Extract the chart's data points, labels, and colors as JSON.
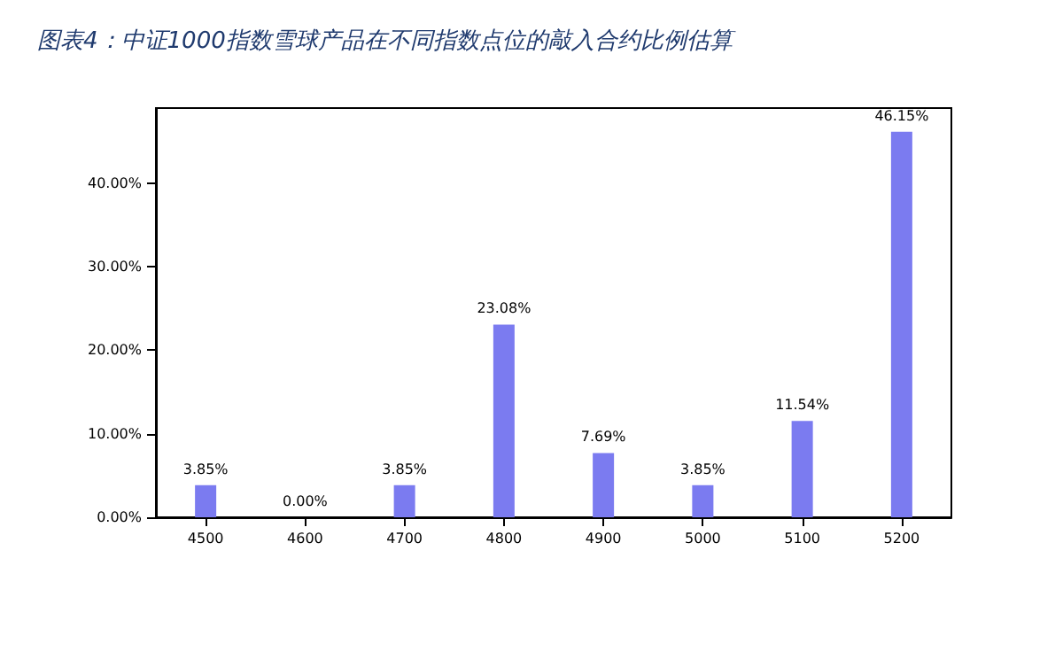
{
  "chart_data": {
    "type": "bar",
    "title": "图表4：中证1000指数雪球产品在不同指数点位的敲入合约比例估算",
    "categories": [
      "4500",
      "4600",
      "4700",
      "4800",
      "4900",
      "5000",
      "5100",
      "5200"
    ],
    "values": [
      3.85,
      0.0,
      3.85,
      23.08,
      7.69,
      3.85,
      11.54,
      46.15
    ],
    "value_labels": [
      "3.85%",
      "0.00%",
      "3.85%",
      "23.08%",
      "7.69%",
      "3.85%",
      "11.54%",
      "46.15%"
    ],
    "color": "#7b7bf0",
    "ylim": [
      0,
      49
    ],
    "yticks": [
      {
        "value": 0,
        "label": "0.00%"
      },
      {
        "value": 10,
        "label": "10.00%"
      },
      {
        "value": 20,
        "label": "20.00%"
      },
      {
        "value": 30,
        "label": "30.00%"
      },
      {
        "value": 40,
        "label": "40.00%"
      }
    ],
    "grid": false
  }
}
